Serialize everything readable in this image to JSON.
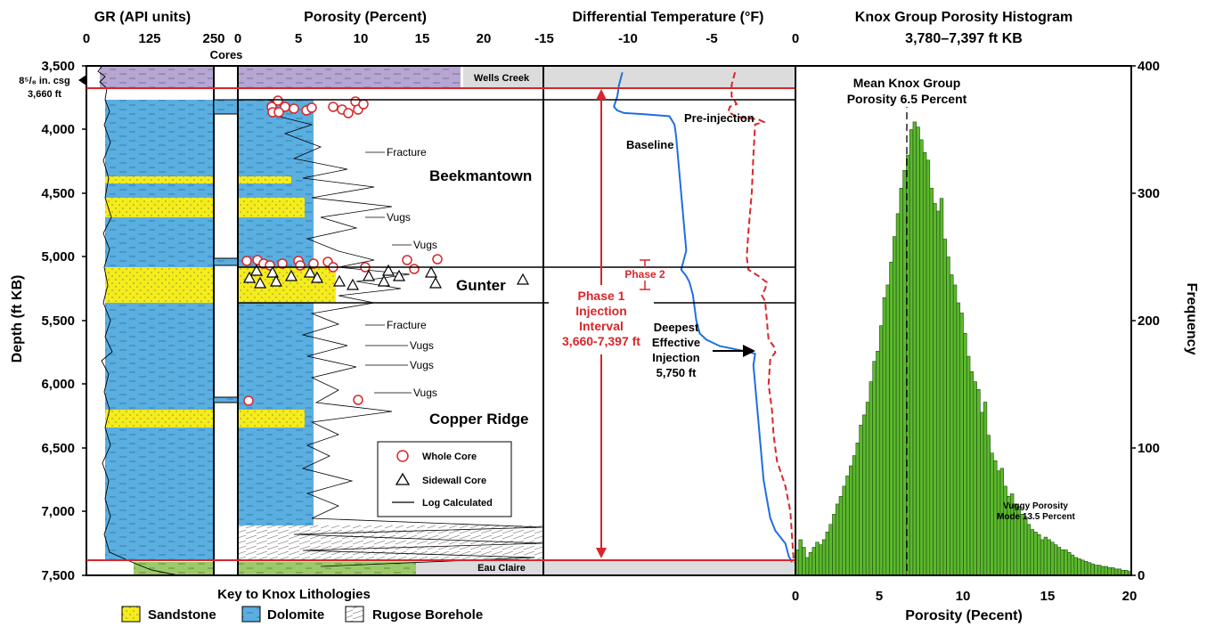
{
  "headers": {
    "gr": "GR (API units)",
    "porosity": "Porosity (Percent)",
    "dtemp": "Differential Temperature (°F)",
    "hist_title": "Knox Group Porosity Histogram",
    "hist_subtitle": "3,780–7,397 ft KB",
    "cores": "Cores"
  },
  "gr_ticks": [
    "0",
    "125",
    "250"
  ],
  "por_ticks": [
    "0",
    "5",
    "10",
    "15",
    "20"
  ],
  "dtemp_ticks": [
    "-15",
    "-10",
    "-5",
    "0"
  ],
  "depth_label": "Depth (ft KB)",
  "depth_ticks": [
    "3,500",
    "4,000",
    "4,500",
    "5,000",
    "5,500",
    "6,000",
    "6,500",
    "7,000",
    "7,500"
  ],
  "casing": {
    "line1": "8⁵/₈ in. csg",
    "line2": "3,660 ft"
  },
  "formations": {
    "wells_creek": "Wells Creek",
    "beekmantown": "Beekmantown",
    "gunter": "Gunter",
    "copper_ridge": "Copper Ridge",
    "eau_claire": "Eau Claire"
  },
  "features": {
    "fracture1": "Fracture",
    "vugs1": "Vugs",
    "vugs2": "Vugs",
    "fracture2": "Fracture",
    "vugs3": "Vugs",
    "vugs4": "Vugs",
    "vugs5": "Vugs"
  },
  "legend": {
    "whole_core": "Whole Core",
    "sidewall_core": "Sidewall Core",
    "log_calc": "Log Calculated"
  },
  "lith_key": {
    "title": "Key to Knox Lithologies",
    "sandstone": "Sandstone",
    "dolomite": "Dolomite",
    "rugose": "Rugose Borehole"
  },
  "temp_labels": {
    "pre_injection": "Pre-injection",
    "baseline": "Baseline",
    "phase2": "Phase 2",
    "phase1_l1": "Phase 1",
    "phase1_l2": "Injection",
    "phase1_l3": "Interval",
    "phase1_l4": "3,660-7,397 ft",
    "deep_l1": "Deepest",
    "deep_l2": "Effective",
    "deep_l3": "Injection",
    "deep_l4": "5,750 ft"
  },
  "histogram": {
    "mean_l1": "Mean Knox Group",
    "mean_l2": "Porosity 6.5 Percent",
    "vuggy_l1": "Vuggy Porosity",
    "vuggy_l2": "Mode 13.5 Percent",
    "xlabel": "Porosity (Pecent)",
    "ylabel": "Frequency",
    "x_ticks": [
      "0",
      "5",
      "10",
      "15",
      "20"
    ],
    "y_ticks": [
      "0",
      "100",
      "200",
      "300",
      "400"
    ]
  },
  "colors": {
    "dolomite": "#5aaee0",
    "sandstone": "#f5ec1c",
    "shale_purple": "#b7a6d2",
    "shale_green": "#9cca6b",
    "histogram_bar": "#5cb82e",
    "temp_baseline": "#1f6fe0",
    "temp_preinjection": "#d9262b",
    "casing_line": "#d9262b"
  },
  "chart_data": [
    {
      "type": "line",
      "title": "Differential Temperature (°F)",
      "xlabel": "Differential Temperature (°F)",
      "ylabel": "Depth (ft KB)",
      "xlim": [
        -15,
        0
      ],
      "ylim": [
        7500,
        3500
      ],
      "series": [
        {
          "name": "Baseline",
          "points": [
            [
              -10.3,
              3550
            ],
            [
              -10.5,
              3650
            ],
            [
              -10.6,
              3740
            ],
            [
              -10.8,
              3820
            ],
            [
              -10.6,
              3850
            ],
            [
              -10.2,
              3870
            ],
            [
              -9.0,
              3880
            ],
            [
              -7.5,
              3895
            ],
            [
              -7.2,
              3960
            ],
            [
              -7.1,
              4050
            ],
            [
              -7.0,
              4200
            ],
            [
              -6.9,
              4350
            ],
            [
              -6.8,
              4500
            ],
            [
              -6.7,
              4650
            ],
            [
              -6.6,
              4800
            ],
            [
              -6.5,
              4950
            ],
            [
              -6.7,
              5050
            ],
            [
              -6.8,
              5100
            ],
            [
              -6.5,
              5150
            ],
            [
              -6.3,
              5200
            ],
            [
              -6.2,
              5250
            ],
            [
              -6.1,
              5300
            ],
            [
              -6.0,
              5400
            ],
            [
              -5.9,
              5500
            ],
            [
              -5.7,
              5600
            ],
            [
              -5.3,
              5650
            ],
            [
              -4.5,
              5700
            ],
            [
              -3.0,
              5740
            ],
            [
              -2.4,
              5760
            ],
            [
              -2.5,
              5850
            ],
            [
              -2.4,
              6000
            ],
            [
              -2.3,
              6150
            ],
            [
              -2.2,
              6300
            ],
            [
              -2.1,
              6450
            ],
            [
              -2.0,
              6600
            ],
            [
              -1.9,
              6750
            ],
            [
              -1.7,
              6900
            ],
            [
              -1.5,
              7050
            ],
            [
              -1.2,
              7150
            ],
            [
              -0.6,
              7250
            ],
            [
              -0.4,
              7350
            ],
            [
              -0.2,
              7397
            ]
          ]
        },
        {
          "name": "Pre-injection",
          "points": [
            [
              -3.6,
              3550
            ],
            [
              -3.8,
              3650
            ],
            [
              -3.8,
              3740
            ],
            [
              -3.5,
              3800
            ],
            [
              -3.9,
              3820
            ],
            [
              -4.0,
              3860
            ],
            [
              -3.5,
              3900
            ],
            [
              -2.2,
              3920
            ],
            [
              -1.9,
              3940
            ],
            [
              -2.4,
              3960
            ],
            [
              -2.5,
              4200
            ],
            [
              -2.6,
              4500
            ],
            [
              -2.8,
              4800
            ],
            [
              -2.9,
              5000
            ],
            [
              -2.8,
              5100
            ],
            [
              -2.2,
              5150
            ],
            [
              -1.7,
              5200
            ],
            [
              -1.8,
              5250
            ],
            [
              -2.0,
              5300
            ],
            [
              -1.8,
              5350
            ],
            [
              -1.7,
              5500
            ],
            [
              -1.6,
              5650
            ],
            [
              -1.3,
              5700
            ],
            [
              -1.2,
              5750
            ],
            [
              -1.5,
              5800
            ],
            [
              -1.6,
              6000
            ],
            [
              -1.4,
              6200
            ],
            [
              -1.3,
              6400
            ],
            [
              -1.1,
              6600
            ],
            [
              -0.6,
              6800
            ],
            [
              -0.3,
              7000
            ],
            [
              -0.2,
              7200
            ],
            [
              -0.1,
              7397
            ]
          ]
        }
      ]
    },
    {
      "type": "bar",
      "title": "Knox Group Porosity Histogram",
      "subtitle": "3,780–7,397 ft KB",
      "xlabel": "Porosity (Pecent)",
      "ylabel": "Frequency",
      "xlim": [
        0,
        20
      ],
      "ylim": [
        0,
        400
      ],
      "bin_width": 0.2,
      "values": [
        20,
        28,
        22,
        14,
        18,
        22,
        26,
        24,
        28,
        34,
        40,
        48,
        56,
        62,
        70,
        78,
        86,
        94,
        104,
        118,
        126,
        136,
        152,
        168,
        176,
        196,
        218,
        228,
        246,
        266,
        284,
        304,
        318,
        330,
        350,
        356,
        352,
        342,
        332,
        326,
        304,
        292,
        286,
        296,
        264,
        250,
        236,
        228,
        214,
        206,
        190,
        172,
        160,
        152,
        146,
        128,
        136,
        110,
        96,
        90,
        82,
        84,
        70,
        62,
        64,
        56,
        54,
        48,
        46,
        40,
        36,
        34,
        32,
        28,
        30,
        28,
        26,
        24,
        22,
        20,
        20,
        18,
        16,
        14,
        13,
        12,
        11,
        10,
        9,
        8,
        8,
        7,
        7,
        6,
        6,
        5,
        5,
        4,
        4,
        3
      ]
    }
  ]
}
